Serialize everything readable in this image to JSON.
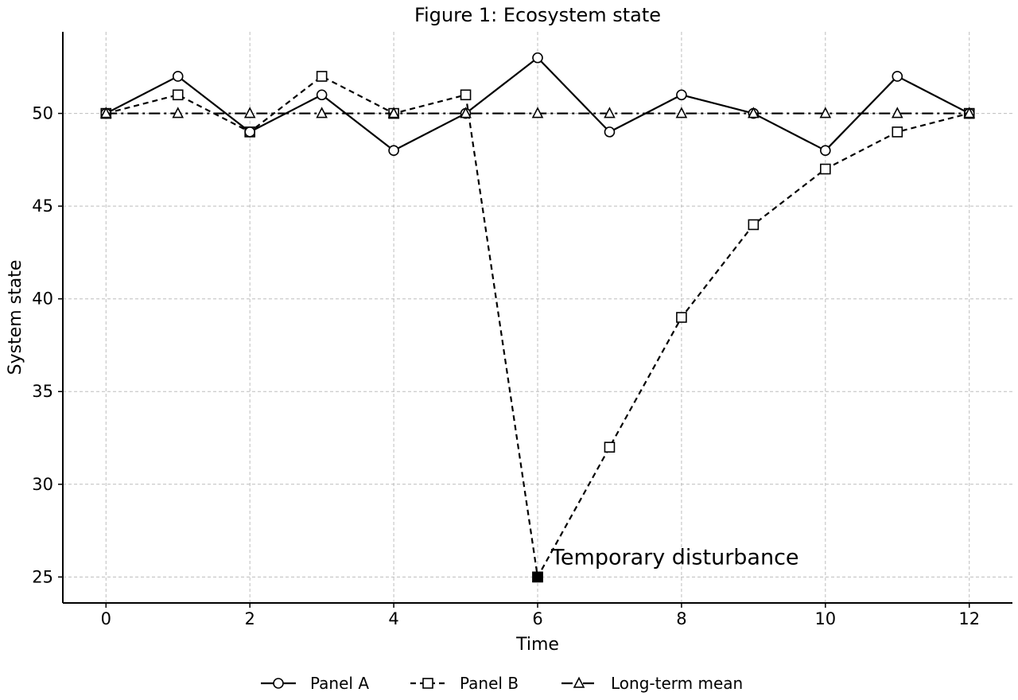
{
  "chart_data": {
    "type": "line",
    "title": "Figure 1: Ecosystem state",
    "xlabel": "Time",
    "ylabel": "System state",
    "xlim": [
      -0.6,
      12.6
    ],
    "ylim": [
      23.6,
      54.4
    ],
    "xticks": [
      0,
      2,
      4,
      6,
      8,
      10,
      12
    ],
    "yticks": [
      25,
      30,
      35,
      40,
      45,
      50
    ],
    "grid": true,
    "legend_position": "bottom-center",
    "series": [
      {
        "name": "Panel A",
        "style": "solid",
        "marker": "circle",
        "x": [
          0,
          1,
          2,
          3,
          4,
          5,
          6,
          7,
          8,
          9,
          10,
          11,
          12
        ],
        "y": [
          50,
          52,
          49,
          51,
          48,
          50,
          53,
          49,
          51,
          50,
          48,
          52,
          50
        ]
      },
      {
        "name": "Panel B",
        "style": "dashed",
        "marker": "square",
        "x": [
          0,
          1,
          2,
          3,
          4,
          5,
          6,
          7,
          8,
          9,
          10,
          11,
          12
        ],
        "y": [
          50,
          51,
          49,
          52,
          50,
          51,
          25,
          32,
          39,
          44,
          47,
          49,
          50
        ]
      },
      {
        "name": "Long-term mean",
        "style": "dashdot",
        "marker": "triangle",
        "x": [
          0,
          1,
          2,
          3,
          4,
          5,
          6,
          7,
          8,
          9,
          10,
          11,
          12
        ],
        "y": [
          50,
          50,
          50,
          50,
          50,
          50,
          50,
          50,
          50,
          50,
          50,
          50,
          50
        ]
      }
    ],
    "annotations": [
      {
        "text": "Temporary disturbance",
        "x": 6,
        "y": 25
      }
    ],
    "colors": {
      "line": "#000000",
      "marker_fill": "#ffffff",
      "grid": "#bdbdbd"
    }
  }
}
